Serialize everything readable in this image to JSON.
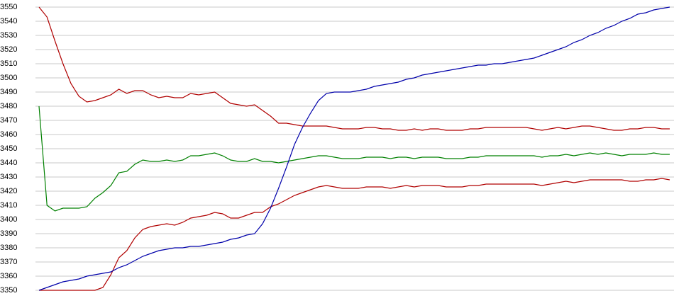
{
  "chart_data": {
    "type": "line",
    "ylim": [
      3350,
      3550
    ],
    "yticks": [
      3350,
      3360,
      3370,
      3380,
      3390,
      3400,
      3410,
      3420,
      3430,
      3440,
      3450,
      3460,
      3470,
      3480,
      3490,
      3500,
      3510,
      3520,
      3530,
      3540,
      3550
    ],
    "grid": true,
    "series": [
      {
        "color": "#b00000",
        "values": [
          3550,
          3543,
          3526,
          3510,
          3496,
          3487,
          3483,
          3484,
          3486,
          3488,
          3492,
          3489,
          3491,
          3491,
          3488,
          3486,
          3487,
          3486,
          3486,
          3489,
          3488,
          3489,
          3490,
          3486,
          3482,
          3481,
          3480,
          3481,
          3477,
          3473,
          3468,
          3468,
          3467,
          3466,
          3466,
          3466,
          3466,
          3465,
          3464,
          3464,
          3464,
          3465,
          3465,
          3464,
          3464,
          3463,
          3463,
          3464,
          3463,
          3464,
          3464,
          3463,
          3463,
          3463,
          3464,
          3464,
          3465,
          3465,
          3465,
          3465,
          3465,
          3465,
          3464,
          3463,
          3464,
          3465,
          3464,
          3465,
          3466,
          3466,
          3465,
          3464,
          3463,
          3463,
          3464,
          3464,
          3465,
          3465,
          3464,
          3464
        ]
      },
      {
        "color": "#008000",
        "values": [
          3480,
          3410,
          3406,
          3408,
          3408,
          3408,
          3409,
          3415,
          3419,
          3424,
          3433,
          3434,
          3439,
          3442,
          3441,
          3441,
          3442,
          3441,
          3442,
          3445,
          3445,
          3446,
          3447,
          3445,
          3442,
          3441,
          3441,
          3443,
          3441,
          3441,
          3440,
          3441,
          3442,
          3443,
          3444,
          3445,
          3445,
          3444,
          3443,
          3443,
          3443,
          3444,
          3444,
          3444,
          3443,
          3444,
          3444,
          3443,
          3444,
          3444,
          3444,
          3443,
          3443,
          3443,
          3444,
          3444,
          3445,
          3445,
          3445,
          3445,
          3445,
          3445,
          3445,
          3444,
          3445,
          3445,
          3446,
          3445,
          3446,
          3447,
          3446,
          3447,
          3446,
          3445,
          3446,
          3446,
          3446,
          3447,
          3446,
          3446
        ]
      },
      {
        "color": "#b00000",
        "values": [
          3350,
          3350,
          3350,
          3350,
          3350,
          3350,
          3350,
          3350,
          3352,
          3361,
          3373,
          3378,
          3387,
          3393,
          3395,
          3396,
          3397,
          3396,
          3398,
          3401,
          3402,
          3403,
          3405,
          3404,
          3401,
          3401,
          3403,
          3405,
          3405,
          3409,
          3411,
          3414,
          3417,
          3419,
          3421,
          3423,
          3424,
          3423,
          3422,
          3422,
          3422,
          3423,
          3423,
          3423,
          3422,
          3423,
          3424,
          3423,
          3424,
          3424,
          3424,
          3423,
          3423,
          3423,
          3424,
          3424,
          3425,
          3425,
          3425,
          3425,
          3425,
          3425,
          3425,
          3424,
          3425,
          3426,
          3427,
          3426,
          3427,
          3428,
          3428,
          3428,
          3428,
          3428,
          3427,
          3427,
          3428,
          3428,
          3429,
          3428
        ]
      },
      {
        "color": "#0000aa",
        "values": [
          3350,
          3352,
          3354,
          3356,
          3357,
          3358,
          3360,
          3361,
          3362,
          3363,
          3366,
          3368,
          3371,
          3374,
          3376,
          3378,
          3379,
          3380,
          3380,
          3381,
          3381,
          3382,
          3383,
          3384,
          3386,
          3387,
          3389,
          3390,
          3397,
          3408,
          3422,
          3437,
          3453,
          3465,
          3475,
          3484,
          3489,
          3490,
          3490,
          3490,
          3491,
          3492,
          3494,
          3495,
          3496,
          3497,
          3499,
          3500,
          3502,
          3503,
          3504,
          3505,
          3506,
          3507,
          3508,
          3509,
          3509,
          3510,
          3510,
          3511,
          3512,
          3513,
          3514,
          3516,
          3518,
          3520,
          3522,
          3525,
          3527,
          3530,
          3532,
          3535,
          3537,
          3540,
          3542,
          3545,
          3546,
          3548,
          3549,
          3550
        ]
      }
    ]
  }
}
